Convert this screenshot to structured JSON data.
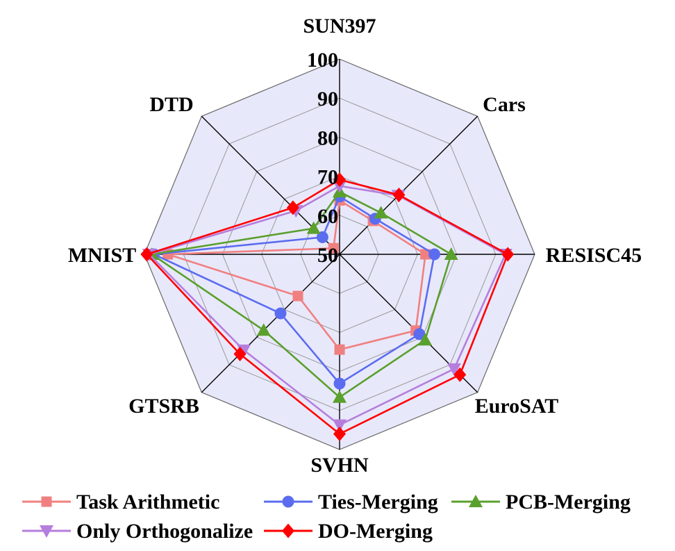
{
  "chart_data": {
    "type": "radar",
    "axes": [
      "SUN397",
      "Cars",
      "RESISC45",
      "EuroSAT",
      "SVHN",
      "GTSRB",
      "MNIST",
      "DTD"
    ],
    "range": [
      50,
      100
    ],
    "ticks": [
      "50",
      "60",
      "70",
      "80",
      "90",
      "100"
    ],
    "series": [
      {
        "name": "Task Arithmetic",
        "color": "#f08080",
        "marker": "square",
        "values": [
          63.8,
          62.1,
          72.0,
          77.6,
          74.4,
          65.1,
          94.0,
          52.2
        ]
      },
      {
        "name": "Ties-Merging",
        "color": "#5b6cf0",
        "marker": "circle",
        "values": [
          64.8,
          62.9,
          74.3,
          78.9,
          83.1,
          71.4,
          97.6,
          56.2
        ]
      },
      {
        "name": "PCB-Merging",
        "color": "#5aa02c",
        "marker": "triangle-up",
        "values": [
          66.0,
          65.0,
          78.6,
          81.0,
          86.6,
          77.5,
          98.1,
          59.4
        ]
      },
      {
        "name": "Only Orthogonalize",
        "color": "#b57edc",
        "marker": "triangle-down",
        "values": [
          67.5,
          71.3,
          92.5,
          91.5,
          93.7,
          84.7,
          98.8,
          65.8
        ]
      },
      {
        "name": "DO-Merging",
        "color": "#ff0000",
        "marker": "diamond",
        "values": [
          69.1,
          71.5,
          93.1,
          93.6,
          96.0,
          86.1,
          99.4,
          66.9
        ]
      }
    ],
    "grid": true
  },
  "legend": {
    "rows": [
      [
        "Task Arithmetic",
        "Ties-Merging",
        "PCB-Merging"
      ],
      [
        "Only Orthogonalize",
        "DO-Merging"
      ]
    ]
  }
}
